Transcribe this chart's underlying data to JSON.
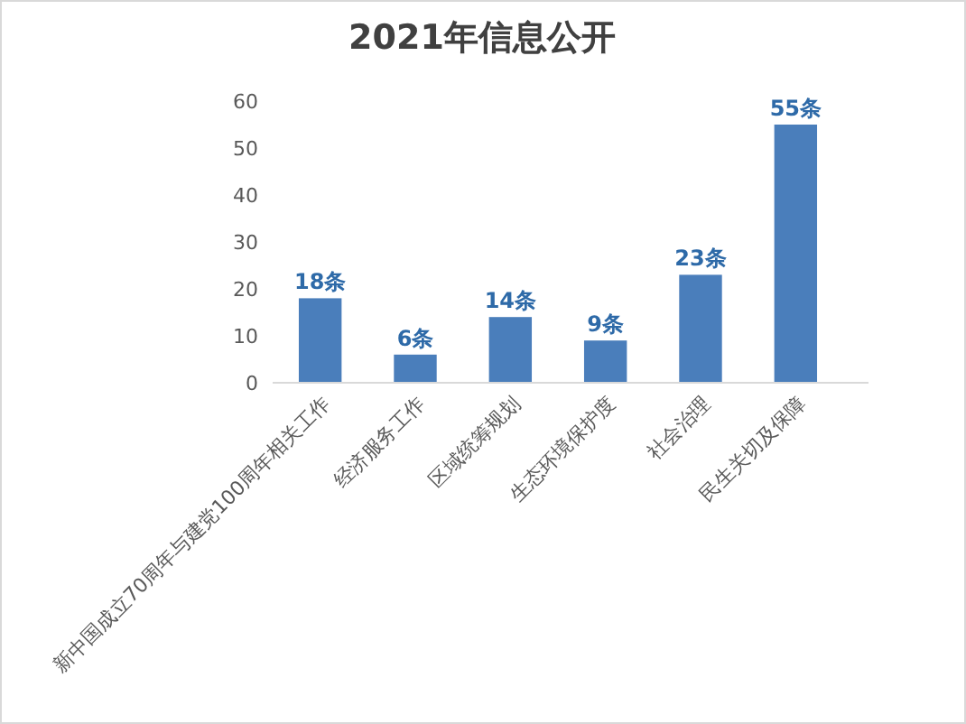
{
  "chart_data": {
    "type": "bar",
    "title": "2021年信息公开",
    "categories": [
      "新中国成立70周年与建党100周年相关工作",
      "经济服务工作",
      "区域统筹规划",
      "生态环境保护度",
      "社会治理",
      "民生关切及保障"
    ],
    "values": [
      18,
      6,
      14,
      9,
      23,
      55
    ],
    "value_labels": [
      "18条",
      "6条",
      "14条",
      "9条",
      "23条",
      "55条"
    ],
    "color": "#4a7ebb",
    "ylim": [
      0,
      60
    ],
    "yticks": [
      0,
      10,
      20,
      30,
      40,
      50,
      60
    ]
  }
}
